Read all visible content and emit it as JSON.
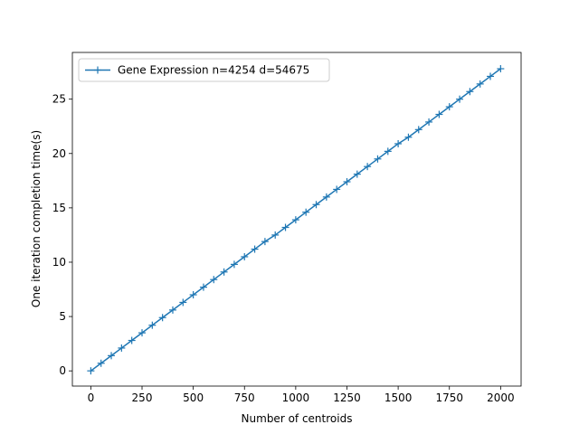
{
  "chart_data": {
    "type": "line",
    "title": "",
    "xlabel": "Number of centroids",
    "ylabel": "One iteration completion time(s)",
    "xlim": [
      -90,
      2100
    ],
    "ylim": [
      -1.4,
      29.3
    ],
    "xticks": [
      0,
      250,
      500,
      750,
      1000,
      1250,
      1500,
      1750,
      2000
    ],
    "yticks": [
      0,
      5,
      10,
      15,
      20,
      25
    ],
    "grid": false,
    "legend_position": "upper-left",
    "series": [
      {
        "name": "Gene Expression n=4254 d=54675",
        "color": "#1f77b4",
        "marker": "+",
        "x": [
          0,
          50,
          100,
          150,
          200,
          250,
          300,
          350,
          400,
          450,
          500,
          550,
          600,
          650,
          700,
          750,
          800,
          850,
          900,
          950,
          1000,
          1050,
          1100,
          1150,
          1200,
          1250,
          1300,
          1350,
          1400,
          1450,
          1500,
          1550,
          1600,
          1650,
          1700,
          1750,
          1800,
          1850,
          1900,
          1950,
          2000
        ],
        "y": [
          0.0,
          0.7,
          1.4,
          2.1,
          2.8,
          3.5,
          4.2,
          4.9,
          5.6,
          6.3,
          7.0,
          7.7,
          8.4,
          9.1,
          9.8,
          10.5,
          11.2,
          11.9,
          12.5,
          13.2,
          13.9,
          14.6,
          15.3,
          16.0,
          16.7,
          17.4,
          18.1,
          18.8,
          19.5,
          20.2,
          20.9,
          21.5,
          22.2,
          22.9,
          23.6,
          24.3,
          25.0,
          25.7,
          26.4,
          27.1,
          27.8
        ]
      }
    ]
  }
}
